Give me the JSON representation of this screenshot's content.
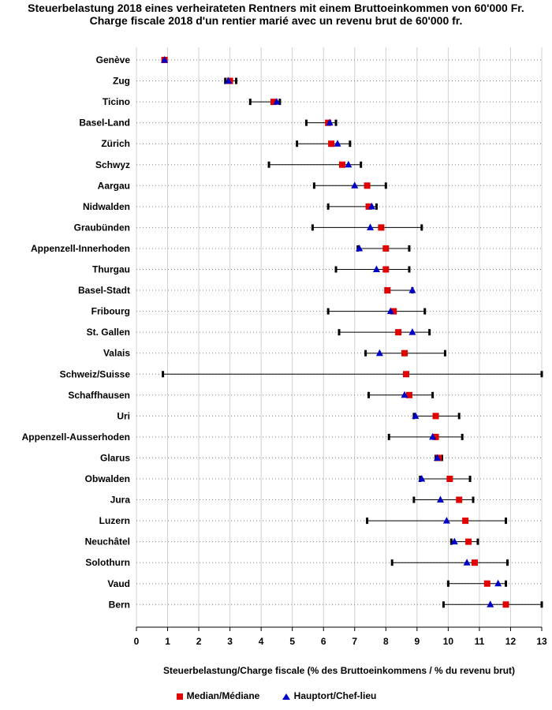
{
  "chart_data": {
    "type": "range-dot",
    "title": "Steuerbelastung 2018 eines verheirateten Rentners mit einem Bruttoeinkommen von 60'000 Fr.",
    "subtitle": "Charge fiscale 2018 d'un rentier marié avec un revenu brut de 60'000 fr.",
    "xlabel": "Steuerbelastung/Charge fiscale (% des Bruttoeinkommens / % du revenu brut)",
    "ylabel": "",
    "xlim": [
      0,
      13
    ],
    "xticks": [
      0,
      1,
      2,
      3,
      4,
      5,
      6,
      7,
      8,
      9,
      10,
      11,
      12,
      13
    ],
    "grid": true,
    "legend": [
      {
        "name": "Median/Médiane",
        "marker": "square",
        "color": "#e00000"
      },
      {
        "name": "Hauptort/Chef-lieu",
        "marker": "triangle",
        "color": "#0000c8"
      }
    ],
    "categories": [
      "Genève",
      "Zug",
      "Ticino",
      "Basel-Land",
      "Zürich",
      "Schwyz",
      "Aargau",
      "Nidwalden",
      "Graubünden",
      "Appenzell-Innerhoden",
      "Thurgau",
      "Basel-Stadt",
      "Fribourg",
      "St. Gallen",
      "Valais",
      "Schweiz/Suisse",
      "Schaffhausen",
      "Uri",
      "Appenzell-Ausserhoden",
      "Glarus",
      "Obwalden",
      "Jura",
      "Luzern",
      "Neuchâtel",
      "Solothurn",
      "Vaud",
      "Bern"
    ],
    "series": [
      {
        "name": "Min",
        "values": [
          0.85,
          2.85,
          3.65,
          5.45,
          5.15,
          4.25,
          5.7,
          6.15,
          5.65,
          7.1,
          6.4,
          8.0,
          6.15,
          6.5,
          7.35,
          0.85,
          7.45,
          8.9,
          8.1,
          9.6,
          9.1,
          8.9,
          7.4,
          10.1,
          8.2,
          10.0,
          9.85
        ]
      },
      {
        "name": "Max",
        "values": [
          0.95,
          3.2,
          4.6,
          6.4,
          6.85,
          7.2,
          8.0,
          7.7,
          9.15,
          8.75,
          8.75,
          8.85,
          9.25,
          9.4,
          9.9,
          13.0,
          9.5,
          10.35,
          10.45,
          9.8,
          10.7,
          10.8,
          11.85,
          10.95,
          11.9,
          11.85,
          13.0
        ]
      },
      {
        "name": "Median/Médiane",
        "values": [
          0.9,
          3.0,
          4.4,
          6.15,
          6.25,
          6.6,
          7.4,
          7.45,
          7.85,
          8.0,
          8.0,
          8.05,
          8.25,
          8.4,
          8.6,
          8.65,
          8.75,
          9.6,
          9.6,
          9.7,
          10.05,
          10.35,
          10.55,
          10.65,
          10.85,
          11.25,
          11.85
        ]
      },
      {
        "name": "Hauptort/Chef-lieu",
        "values": [
          0.9,
          2.95,
          4.5,
          6.2,
          6.45,
          6.8,
          7.0,
          7.55,
          7.5,
          7.15,
          7.7,
          8.85,
          8.15,
          8.85,
          7.8,
          null,
          8.6,
          8.95,
          9.5,
          9.65,
          9.15,
          9.75,
          9.95,
          10.2,
          10.6,
          11.6,
          11.35
        ]
      }
    ]
  }
}
